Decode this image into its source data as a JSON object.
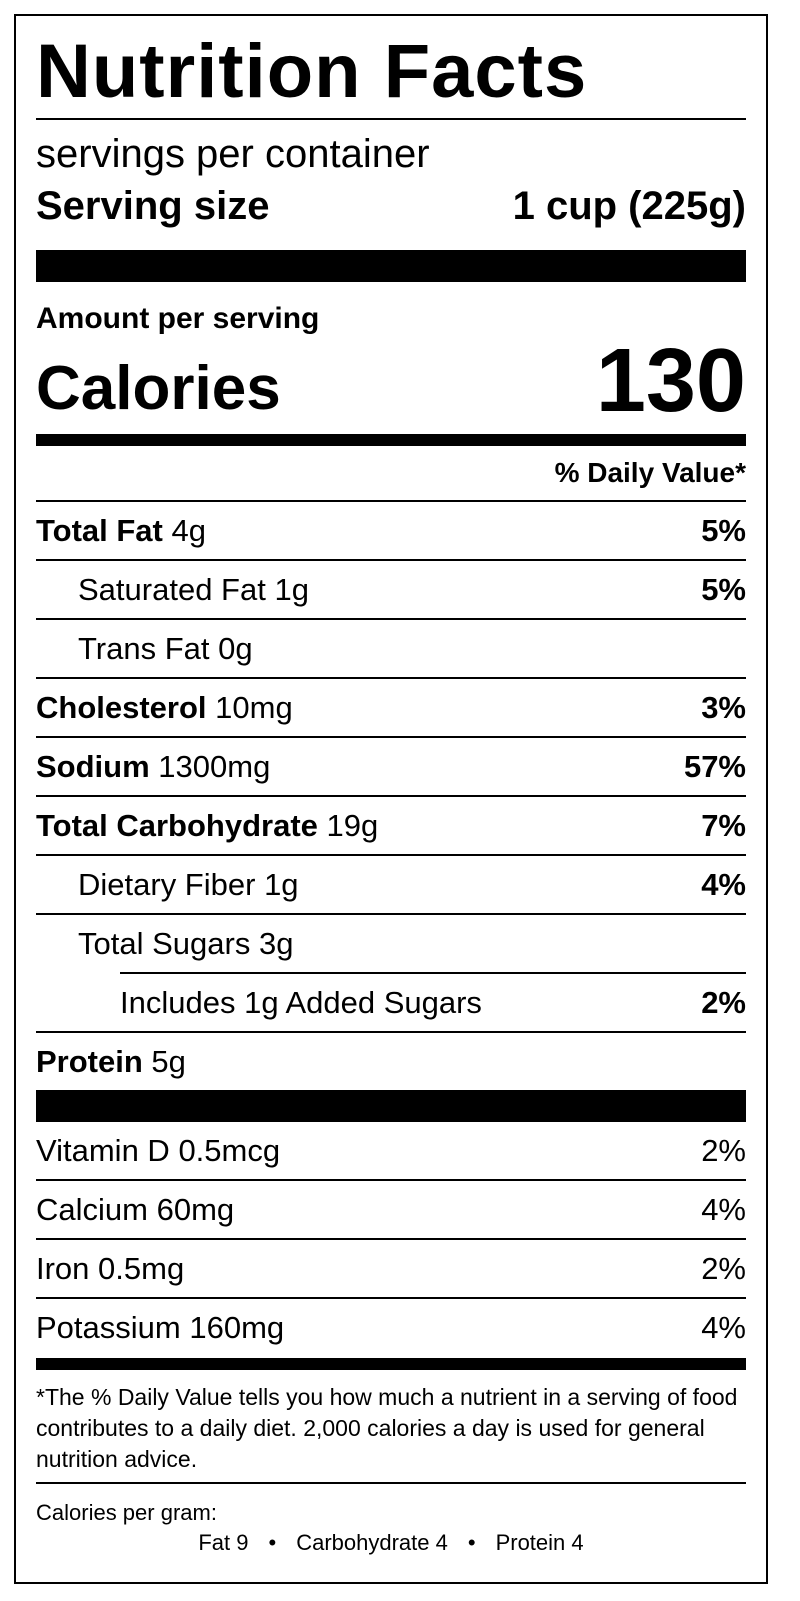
{
  "title": "Nutrition Facts",
  "servings_per_container": "servings per container",
  "serving_size": {
    "label": "Serving size",
    "value": "1 cup (225g)"
  },
  "amount_per_serving": "Amount per serving",
  "calories": {
    "label": "Calories",
    "value": "130"
  },
  "daily_value_header": "% Daily Value*",
  "nutrients": [
    {
      "name": "Total Fat",
      "amount": "4g",
      "dv": "5%"
    },
    {
      "name": "Saturated Fat",
      "amount": "1g",
      "dv": "5%"
    },
    {
      "name": "Trans Fat",
      "amount": "0g",
      "dv": ""
    },
    {
      "name": "Cholesterol",
      "amount": "10mg",
      "dv": "3%"
    },
    {
      "name": "Sodium",
      "amount": "1300mg",
      "dv": "57%"
    },
    {
      "name": "Total Carbohydrate",
      "amount": "19g",
      "dv": "7%"
    },
    {
      "name": "Dietary Fiber",
      "amount": "1g",
      "dv": "4%"
    },
    {
      "name": "Total Sugars",
      "amount": "3g",
      "dv": ""
    },
    {
      "name": "Includes 1g Added Sugars",
      "amount": "",
      "dv": "2%"
    },
    {
      "name": "Protein",
      "amount": "5g",
      "dv": ""
    }
  ],
  "vitamins": [
    {
      "name": "Vitamin D",
      "amount": "0.5mcg",
      "dv": "2%"
    },
    {
      "name": "Calcium",
      "amount": "60mg",
      "dv": "4%"
    },
    {
      "name": "Iron",
      "amount": "0.5mg",
      "dv": "2%"
    },
    {
      "name": "Potassium",
      "amount": "160mg",
      "dv": "4%"
    }
  ],
  "footnote": "*The % Daily Value tells you how much a nutrient in a serving of food contributes to a daily diet. 2,000 calories a day is used for general nutrition advice.",
  "calories_per_gram": {
    "label": "Calories per gram:",
    "fat": "Fat 9",
    "carbohydrate": "Carbohydrate 4",
    "protein": "Protein 4",
    "separator": "•"
  }
}
